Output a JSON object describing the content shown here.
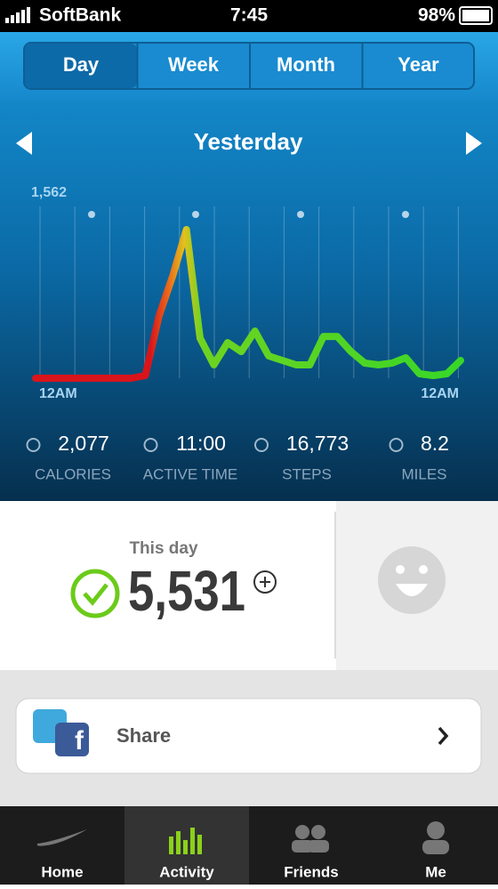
{
  "status_bar": {
    "carrier": "SoftBank",
    "time": "7:45",
    "battery": "98%"
  },
  "tabs": [
    "Day",
    "Week",
    "Month",
    "Year"
  ],
  "period_title": "Yesterday",
  "activity_graph": {
    "type": "line",
    "ylim": [
      0,
      1562
    ],
    "yticks": [
      {
        "value": 1562,
        "label": "1,562"
      }
    ],
    "x_labels": [
      "12AM",
      "12AM"
    ],
    "values": [
      0,
      0,
      0,
      0,
      0,
      0,
      0,
      0,
      28,
      654,
      1075,
      1562,
      421,
      140,
      374,
      280,
      496,
      234,
      187,
      140,
      140,
      439,
      439,
      280,
      159,
      140,
      159,
      215,
      47,
      28,
      47,
      187
    ]
  },
  "stats": [
    {
      "value": "2,077",
      "label": "CALORIES"
    },
    {
      "value": "11:00",
      "label": "ACTIVE TIME"
    },
    {
      "value": "16,773",
      "label": "STEPS"
    },
    {
      "value": "8.2",
      "label": "MILES"
    }
  ],
  "fuel": {
    "label": "This day",
    "value": "5,531"
  },
  "share": {
    "label": "Share"
  },
  "tab_bar": [
    "Home",
    "Activity",
    "Friends",
    "Me"
  ]
}
